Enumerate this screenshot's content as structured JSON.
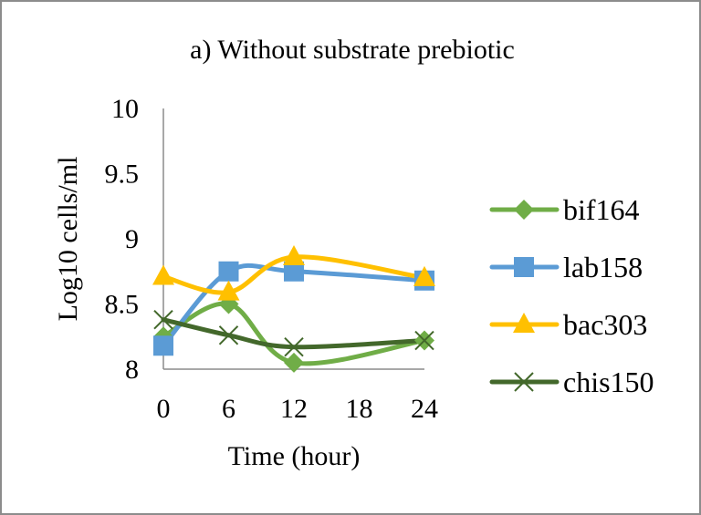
{
  "chart_data": {
    "type": "line",
    "title": "a) Without substrate prebiotic",
    "xlabel": "Time (hour)",
    "ylabel": "Log10 cells/ml",
    "x": [
      0,
      6,
      12,
      24
    ],
    "xticks": [
      0,
      6,
      12,
      18,
      24
    ],
    "xtick_labels": [
      "0",
      "6",
      "12",
      "18",
      "24"
    ],
    "yticks": [
      8,
      8.5,
      9,
      9.5,
      10
    ],
    "ytick_labels": [
      "8",
      "8.5",
      "9",
      "9.5",
      "10"
    ],
    "xlim": [
      0,
      24
    ],
    "ylim": [
      8,
      10
    ],
    "grid": false,
    "smooth": true,
    "legend_position": "right",
    "series": [
      {
        "name": "bif164",
        "marker": "diamond",
        "color": "#70ad47",
        "values": [
          8.25,
          8.5,
          8.05,
          8.22
        ]
      },
      {
        "name": "lab158",
        "marker": "square",
        "color": "#5b9bd5",
        "values": [
          8.18,
          8.75,
          8.75,
          8.68
        ]
      },
      {
        "name": "bac303",
        "marker": "triangle",
        "color": "#ffc000",
        "values": [
          8.71,
          8.59,
          8.86,
          8.7
        ]
      },
      {
        "name": "chis150",
        "marker": "x",
        "color": "#43682b",
        "values": [
          8.38,
          8.26,
          8.17,
          8.22
        ]
      }
    ]
  }
}
